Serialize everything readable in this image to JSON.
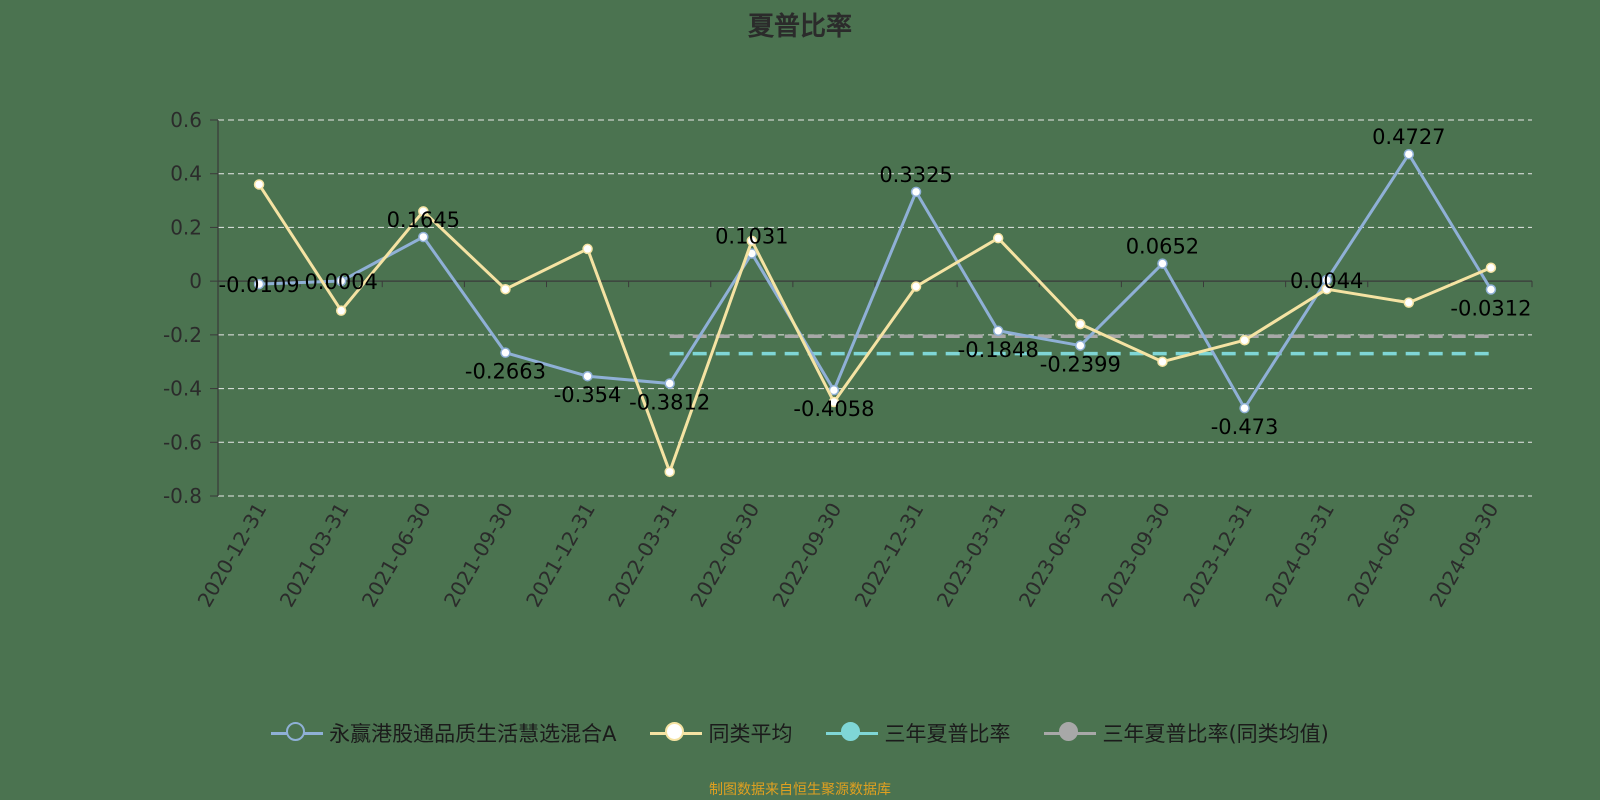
{
  "chart_data": {
    "type": "line",
    "title": "夏普比率",
    "xlabel": "",
    "ylabel": "",
    "ylim": [
      -0.8,
      0.6
    ],
    "yticks": [
      0.6,
      0.4,
      0.2,
      0,
      -0.2,
      -0.4,
      -0.6,
      -0.8
    ],
    "ytick_labels": [
      "0.6",
      "0.4",
      "0.2",
      "0",
      "-0.2",
      "-0.4",
      "-0.6",
      "-0.8"
    ],
    "grid": true,
    "legend_position": "bottom",
    "categories": [
      "2020-12-31",
      "2021-03-31",
      "2021-06-30",
      "2021-09-30",
      "2021-12-31",
      "2022-03-31",
      "2022-06-30",
      "2022-09-30",
      "2022-12-31",
      "2023-03-31",
      "2023-06-30",
      "2023-09-30",
      "2023-12-31",
      "2024-03-31",
      "2024-06-30",
      "2024-09-30"
    ],
    "series": [
      {
        "name": "永赢港股通品质生活慧选混合A",
        "color": "#8fb0d6",
        "values": [
          -0.0109,
          0.0004,
          0.1645,
          -0.2663,
          -0.354,
          -0.3812,
          0.1031,
          -0.4058,
          0.3325,
          -0.1848,
          -0.2399,
          0.0652,
          -0.473,
          0.0044,
          0.4727,
          -0.0312
        ],
        "labels": [
          "-0.0109",
          "0.0004",
          "0.1645",
          "-0.2663",
          "-0.354",
          "-0.3812",
          "0.1031",
          "-0.4058",
          "0.3325",
          "-0.1848",
          "-0.2399",
          "0.0652",
          "-0.473",
          "0.0044",
          "0.4727",
          "-0.0312"
        ]
      },
      {
        "name": "同类平均",
        "color": "#f5e3a3",
        "values": [
          0.36,
          -0.11,
          0.26,
          -0.03,
          0.12,
          -0.71,
          0.15,
          -0.45,
          -0.02,
          0.16,
          -0.16,
          -0.3,
          -0.22,
          -0.03,
          -0.08,
          0.05
        ]
      },
      {
        "name": "三年夏普比率",
        "color": "#7fd6d6",
        "dashed": true,
        "start_category": "2022-03-31",
        "end_category": "2024-09-30",
        "value": -0.27
      },
      {
        "name": "三年夏普比率(同类均值)",
        "color": "#a8a8a8",
        "dashed": true,
        "start_category": "2022-03-31",
        "end_category": "2024-09-30",
        "value": -0.205
      }
    ]
  },
  "footer": {
    "source": "制图数据来自恒生聚源数据库"
  }
}
